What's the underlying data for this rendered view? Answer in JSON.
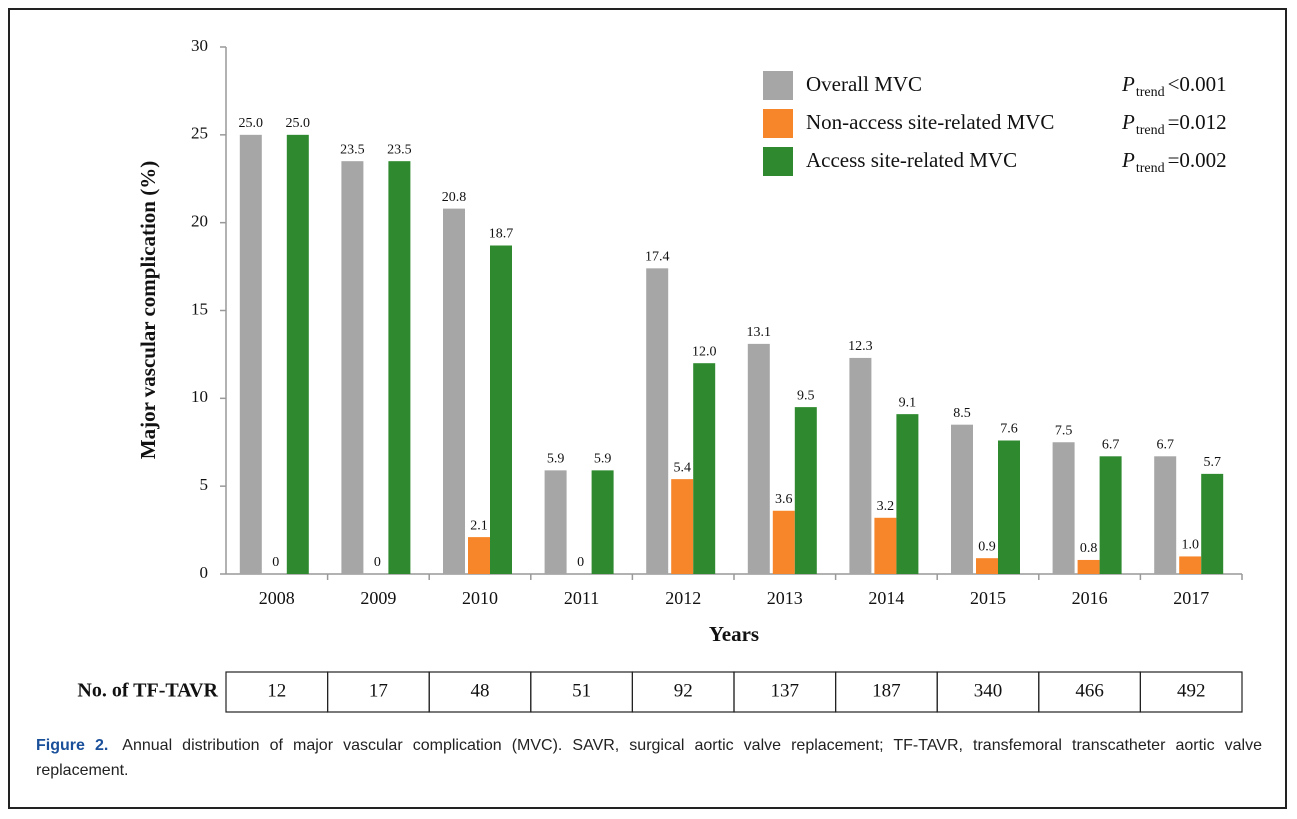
{
  "chart_data": {
    "type": "bar",
    "categories": [
      "2008",
      "2009",
      "2010",
      "2011",
      "2012",
      "2013",
      "2014",
      "2015",
      "2016",
      "2017"
    ],
    "series": [
      {
        "name": "Overall MVC",
        "color": "#a6a6a6",
        "values": [
          25.0,
          23.5,
          20.8,
          5.9,
          17.4,
          13.1,
          12.3,
          8.5,
          7.5,
          6.7
        ],
        "value_labels": [
          "25.0",
          "23.5",
          "20.8",
          "5.9",
          "17.4",
          "13.1",
          "12.3",
          "8.5",
          "7.5",
          "6.7"
        ],
        "trend": {
          "p": "P",
          "sub": "trend",
          "text": "<0.001"
        }
      },
      {
        "name": "Non-access site-related MVC",
        "color": "#f7862a",
        "values": [
          0,
          0,
          2.1,
          0,
          5.4,
          3.6,
          3.2,
          0.9,
          0.8,
          1.0
        ],
        "value_labels": [
          "0",
          "0",
          "2.1",
          "0",
          "5.4",
          "3.6",
          "3.2",
          "0.9",
          "0.8",
          "1.0"
        ],
        "trend": {
          "p": "P",
          "sub": "trend",
          "text": "=0.012"
        }
      },
      {
        "name": "Access site-related MVC",
        "color": "#2f8a2f",
        "values": [
          25.0,
          23.5,
          18.7,
          5.9,
          12.0,
          9.5,
          9.1,
          7.6,
          6.7,
          5.7
        ],
        "value_labels": [
          "25.0",
          "23.5",
          "18.7",
          "5.9",
          "12.0",
          "9.5",
          "9.1",
          "7.6",
          "6.7",
          "5.7"
        ],
        "trend": {
          "p": "P",
          "sub": "trend",
          "text": "=0.002"
        }
      }
    ],
    "ylim": [
      0,
      30
    ],
    "yticks": [
      0,
      5,
      10,
      15,
      20,
      25,
      30
    ],
    "ylabel": "Major vascular complication (%)",
    "xlabel": "Years",
    "legend": "top-right",
    "table": {
      "label": "No. of TF-TAVR",
      "values": [
        12,
        17,
        48,
        51,
        92,
        137,
        187,
        340,
        466,
        492
      ]
    }
  },
  "caption": {
    "label": "Figure 2.",
    "text": "Annual distribution of major vascular complication (MVC). SAVR, surgical aortic valve replacement; TF-TAVR, transfemoral transcatheter aortic valve replacement."
  }
}
